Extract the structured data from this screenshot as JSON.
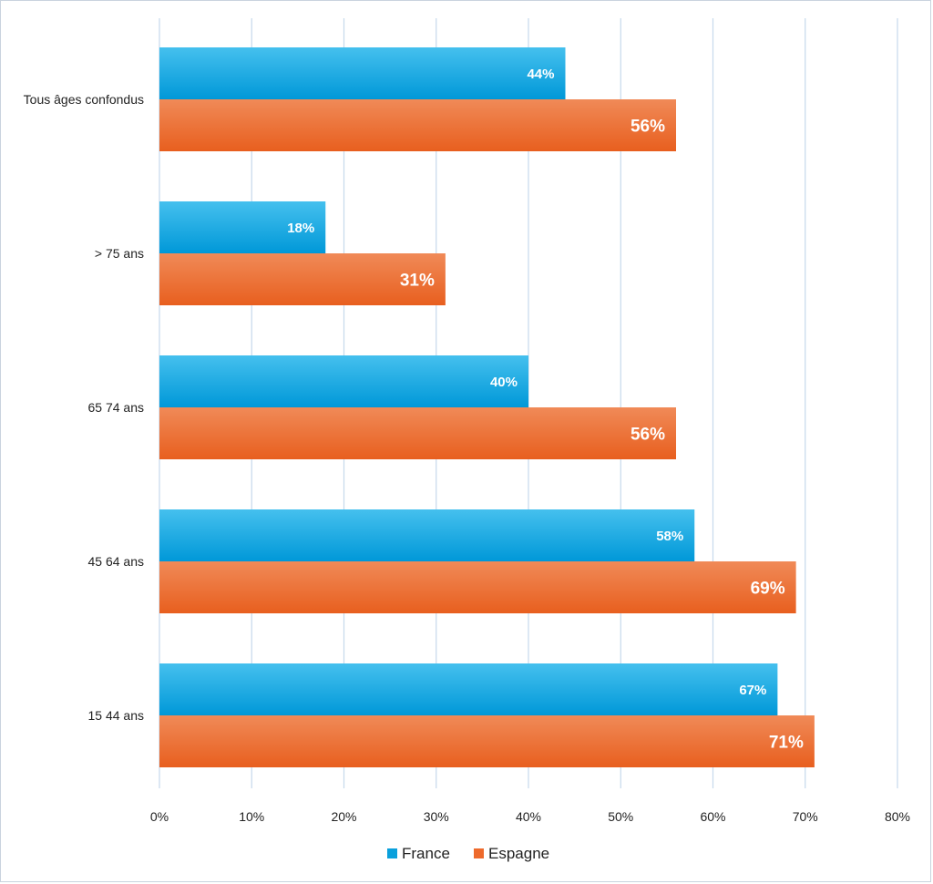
{
  "chart_data": {
    "type": "bar",
    "orientation": "horizontal",
    "categories": [
      "Tous âges confondus",
      "> 75 ans",
      "65 74 ans",
      "45 64 ans",
      "15 44 ans"
    ],
    "series": [
      {
        "name": "France",
        "values": [
          44,
          18,
          40,
          58,
          67
        ],
        "labels": [
          "44%",
          "18%",
          "40%",
          "58%",
          "67%"
        ]
      },
      {
        "name": "Espagne",
        "values": [
          56,
          31,
          56,
          69,
          71
        ],
        "labels": [
          "56%",
          "31%",
          "56%",
          "69%",
          "71%"
        ]
      }
    ],
    "xlim": [
      0,
      80
    ],
    "x_ticks": [
      "0%",
      "10%",
      "20%",
      "30%",
      "40%",
      "50%",
      "60%",
      "70%",
      "80%"
    ],
    "grid": "vertical",
    "legend": "bottom-center",
    "colors": {
      "France": "#0aa0dc",
      "Espagne": "#ee6a2c"
    }
  }
}
